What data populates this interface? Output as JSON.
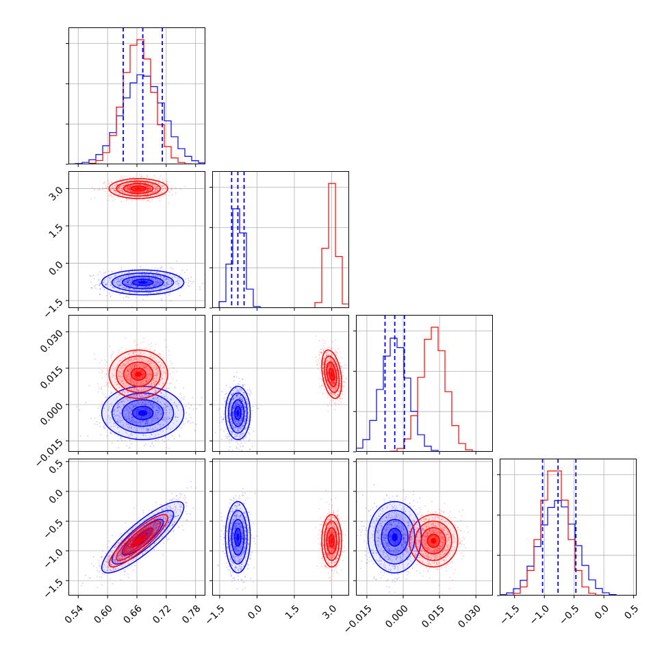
{
  "colors": {
    "blue": "#0000ff",
    "red": "#ff0000",
    "grid": "#b0b0b0"
  },
  "chart_data": {
    "type": "corner",
    "grid": true,
    "quantile_lines": {
      "color": "#0000ff",
      "style": "dashed",
      "series": "blue"
    },
    "params": [
      {
        "range": [
          0.52,
          0.8
        ],
        "ticks": [
          0.54,
          0.6,
          0.66,
          0.72,
          0.78
        ],
        "tick_labels": [
          "0.54",
          "0.60",
          "0.66",
          "0.72",
          "0.78"
        ]
      },
      {
        "range": [
          -1.8,
          3.7
        ],
        "ticks": [
          -1.5,
          0.0,
          1.5,
          3.0
        ],
        "tick_labels": [
          "−1.5",
          "0.0",
          "1.5",
          "3.0"
        ]
      },
      {
        "range": [
          -0.0195,
          0.037
        ],
        "ticks": [
          -0.015,
          0.0,
          0.015,
          0.03
        ],
        "tick_labels": [
          "−0.015",
          "0.000",
          "0.015",
          "0.030"
        ]
      },
      {
        "range": [
          -1.75,
          0.55
        ],
        "ticks": [
          -1.5,
          -1.0,
          -0.5,
          0.0,
          0.5
        ],
        "tick_labels": [
          "−1.5",
          "−1.0",
          "−0.5",
          "0.0",
          "0.5"
        ]
      }
    ],
    "series": [
      {
        "color": "#0000ff",
        "mean": [
          0.672,
          -0.77,
          -0.0035,
          -0.77
        ],
        "std": [
          0.042,
          0.25,
          0.0055,
          0.3
        ],
        "corr": {
          "0-3": 0.85
        },
        "quantiles": [
          [
            0.632,
            0.672,
            0.712
          ],
          [
            -1.02,
            -0.77,
            -0.52
          ],
          [
            -0.0075,
            -0.0035,
            0.0005
          ],
          [
            -1.03,
            -0.77,
            -0.47
          ]
        ]
      },
      {
        "color": "#ff0000",
        "mean": [
          0.663,
          3.0,
          0.0125,
          -0.83
        ],
        "std": [
          0.03,
          0.2,
          0.005,
          0.22
        ],
        "corr": {
          "0-3": 0.88,
          "1-2": -0.35
        }
      }
    ]
  }
}
